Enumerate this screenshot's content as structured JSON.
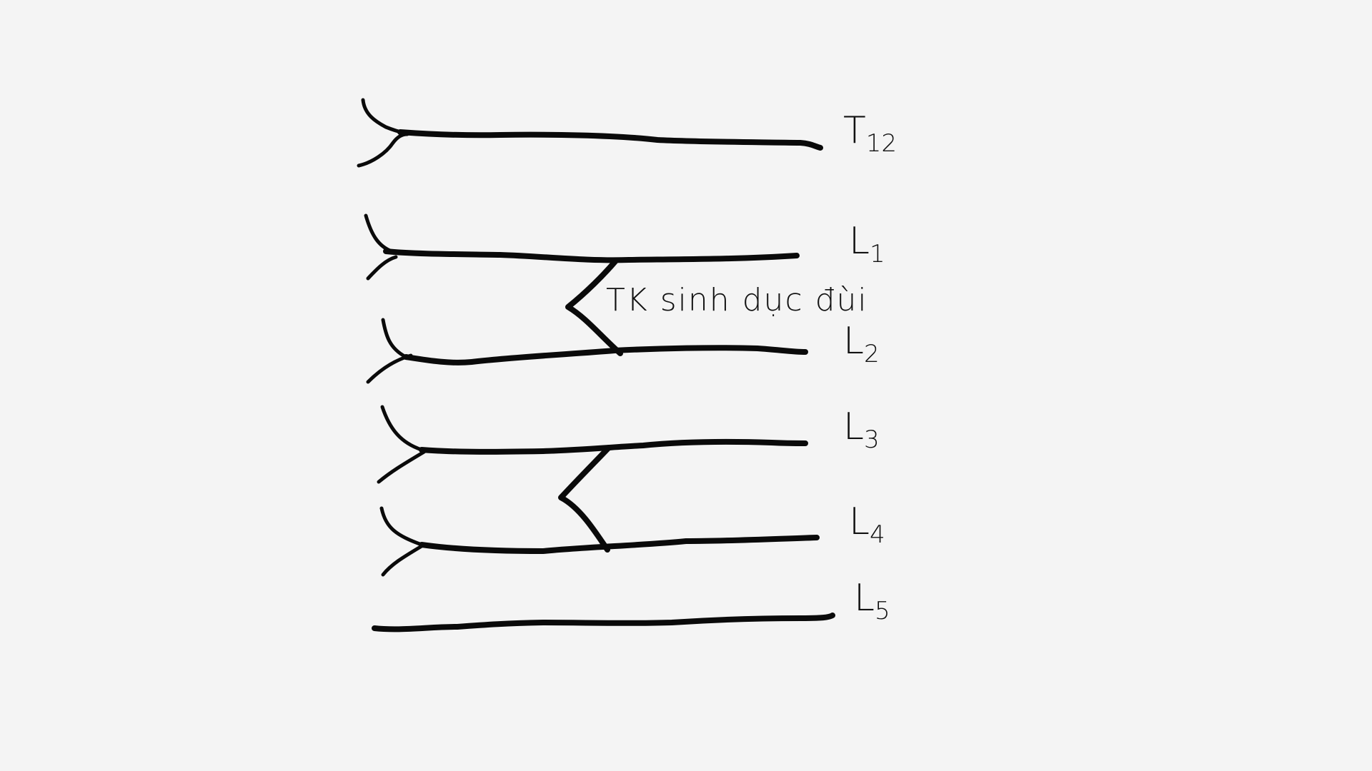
{
  "diagram": {
    "annotation": "TK sinh dục đùi",
    "roots": [
      {
        "main": "T",
        "sub": "12"
      },
      {
        "main": "L",
        "sub": "1"
      },
      {
        "main": "L",
        "sub": "2"
      },
      {
        "main": "L",
        "sub": "3"
      },
      {
        "main": "L",
        "sub": "4"
      },
      {
        "main": "L",
        "sub": "5"
      }
    ]
  }
}
